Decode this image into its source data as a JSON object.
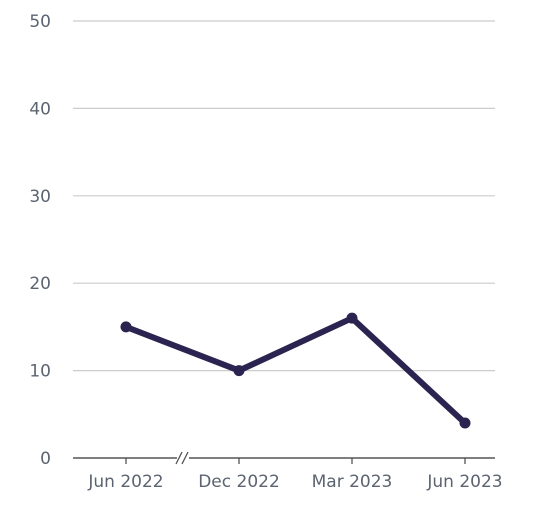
{
  "chart_data": {
    "type": "line",
    "title": "",
    "xlabel": "",
    "ylabel": "",
    "categories": [
      "Jun 2022",
      "Dec 2022",
      "Mar 2023",
      "Jun 2023"
    ],
    "series": [
      {
        "values": [
          15,
          10,
          16,
          4
        ]
      }
    ],
    "ylim": [
      0,
      50
    ],
    "yticks": [
      "0",
      "10",
      "20",
      "30",
      "40",
      "50"
    ],
    "grid": true,
    "axis_break": true,
    "colors": {
      "line": "#2c2450",
      "grid": "#cccccc",
      "axis": "#555555",
      "text": "#5b6470"
    }
  }
}
